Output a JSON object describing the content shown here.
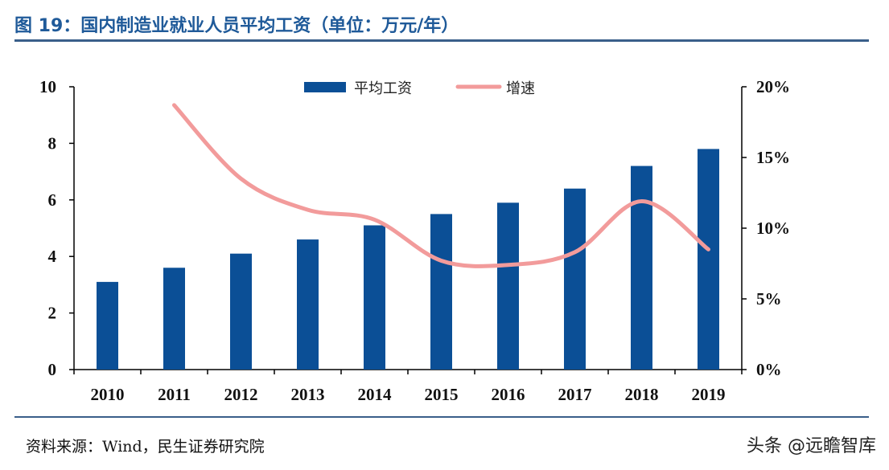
{
  "header": {
    "title": "图 19：国内制造业就业人员平均工资（单位：万元/年）"
  },
  "footer": {
    "source": "资料来源：Wind，民生证券研究院",
    "watermark": "头条 @远瞻智库"
  },
  "chart_data": {
    "type": "bar",
    "title": "图 19：国内制造业就业人员平均工资（单位：万元/年）",
    "categories": [
      "2010",
      "2011",
      "2012",
      "2013",
      "2014",
      "2015",
      "2016",
      "2017",
      "2018",
      "2019"
    ],
    "series": [
      {
        "name": "平均工资",
        "type": "bar",
        "axis": "left",
        "color": "#0b4f96",
        "values": [
          3.1,
          3.6,
          4.1,
          4.6,
          5.1,
          5.5,
          5.9,
          6.4,
          7.2,
          7.8
        ]
      },
      {
        "name": "增速",
        "type": "line",
        "axis": "right",
        "color": "#f29b9b",
        "values": [
          null,
          18.7,
          13.5,
          11.3,
          10.6,
          7.7,
          7.4,
          8.3,
          11.9,
          8.5
        ]
      }
    ],
    "ylim_left": [
      0,
      10
    ],
    "yticks_left": [
      "0",
      "2",
      "4",
      "6",
      "8",
      "10"
    ],
    "ylim_right": [
      0,
      20
    ],
    "yticks_right": [
      "0%",
      "5%",
      "10%",
      "15%",
      "20%"
    ],
    "legend_position": "top-center",
    "grid": false
  }
}
